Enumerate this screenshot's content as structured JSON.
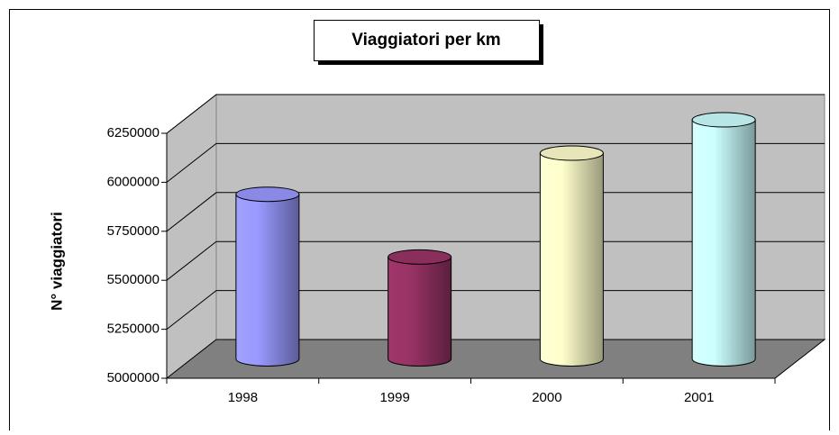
{
  "chart_data": {
    "type": "cylinder",
    "title": "Viaggiatori per km",
    "y_label": "N° viaggiatori",
    "categories": [
      "1998",
      "1999",
      "2000",
      "2001"
    ],
    "values": [
      5840000,
      5520000,
      6050000,
      6220000
    ],
    "colors": [
      "#9999ff",
      "#993366",
      "#ffffcc",
      "#ccffff"
    ],
    "ylim": [
      5000000,
      6250000
    ],
    "yticks": [
      5000000,
      5250000,
      5500000,
      5750000,
      6000000,
      6250000
    ],
    "grid": true
  }
}
